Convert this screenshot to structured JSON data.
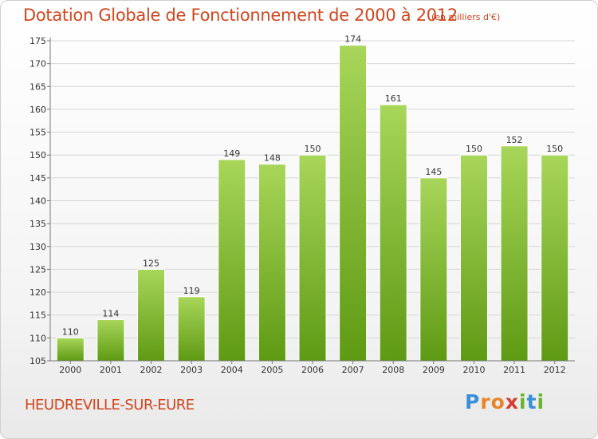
{
  "title": "Dotation Globale de Fonctionnement de 2000 à 2012",
  "subtitle": "(en milliers d'€)",
  "commune": "HEUDREVILLE-SUR-EURE",
  "logo": {
    "letters": [
      "P",
      "r",
      "o",
      "x",
      "i",
      "t",
      "i"
    ],
    "colors": [
      "#3a8fd8",
      "#e8842a",
      "#e8842a",
      "#d63c2e",
      "#6ab32e",
      "#3a8fd8",
      "#6ab32e"
    ]
  },
  "colors": {
    "bar_top": "#a8d65a",
    "bar_bottom": "#5f9a14",
    "accent": "#d0461e",
    "axis_text": "#333333"
  },
  "chart_data": {
    "type": "bar",
    "categories": [
      "2000",
      "2001",
      "2002",
      "2003",
      "2004",
      "2005",
      "2006",
      "2007",
      "2008",
      "2009",
      "2010",
      "2011",
      "2012"
    ],
    "values": [
      110,
      114,
      125,
      119,
      149,
      148,
      150,
      174,
      161,
      145,
      150,
      152,
      150
    ],
    "ylim": [
      105,
      175
    ],
    "yticks": [
      105,
      110,
      115,
      120,
      125,
      130,
      135,
      140,
      145,
      150,
      155,
      160,
      165,
      170,
      175
    ],
    "grid": true,
    "data_labels": true
  }
}
